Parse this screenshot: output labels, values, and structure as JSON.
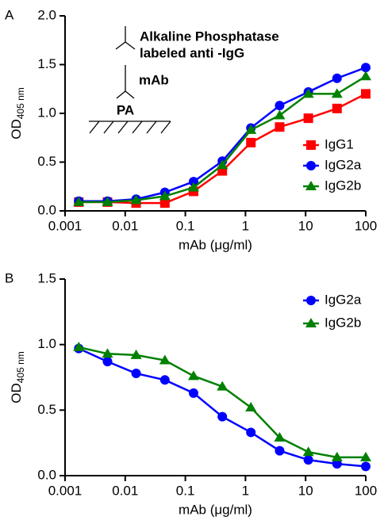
{
  "chart_data": [
    {
      "type": "line",
      "panel": "A",
      "y_label": "OD",
      "y_label_sub": "405 nm",
      "x_label": "mAb (μg/ml)",
      "x_scale": "log",
      "x": [
        0.00169,
        0.00508,
        0.0152,
        0.0457,
        0.137,
        0.412,
        1.23,
        3.7,
        11.1,
        33.3,
        100
      ],
      "xlim": [
        0.001,
        100
      ],
      "xticks": [
        0.001,
        0.01,
        0.1,
        1,
        10,
        100
      ],
      "ylim": [
        0,
        2
      ],
      "yticks": [
        {
          "value": 0,
          "label": "0.0"
        },
        0.5,
        {
          "value": 1,
          "label": "1.0"
        },
        1.5,
        {
          "value": 2,
          "label": "2.0"
        }
      ],
      "annotations": [
        "Alkaline Phosphatase",
        "labeled anti -IgG",
        "mAb",
        "PA"
      ],
      "series": [
        {
          "name": "IgG1",
          "color": "#ff0000",
          "marker": "square",
          "values": [
            0.09,
            0.09,
            0.08,
            0.08,
            0.2,
            0.41,
            0.7,
            0.86,
            0.95,
            1.05,
            1.2
          ]
        },
        {
          "name": "IgG2a",
          "color": "#0000ff",
          "marker": "circle",
          "values": [
            0.1,
            0.1,
            0.12,
            0.19,
            0.3,
            0.51,
            0.85,
            1.08,
            1.22,
            1.36,
            1.47
          ]
        },
        {
          "name": "IgG2b",
          "color": "#008000",
          "marker": "triangle",
          "values": [
            0.09,
            0.09,
            0.11,
            0.15,
            0.24,
            0.47,
            0.83,
            0.98,
            1.2,
            1.2,
            1.38
          ]
        }
      ]
    },
    {
      "type": "line",
      "panel": "B",
      "y_label": "OD",
      "y_label_sub": "405 nm",
      "x_label": "mAb (μg/ml)",
      "x_scale": "log",
      "x": [
        0.00169,
        0.00508,
        0.0152,
        0.0457,
        0.137,
        0.412,
        1.23,
        3.7,
        11.1,
        33.3,
        100
      ],
      "xlim": [
        0.001,
        100
      ],
      "xticks": [
        0.001,
        0.01,
        0.1,
        1,
        10,
        100
      ],
      "ylim": [
        0,
        1.5
      ],
      "yticks": [
        {
          "value": 0,
          "label": "0.0"
        },
        0.5,
        {
          "value": 1,
          "label": "1.0"
        },
        1.5
      ],
      "series": [
        {
          "name": "IgG2a",
          "color": "#0000ff",
          "marker": "circle",
          "values": [
            0.97,
            0.87,
            0.78,
            0.73,
            0.63,
            0.45,
            0.33,
            0.19,
            0.12,
            0.09,
            0.07
          ]
        },
        {
          "name": "IgG2b",
          "color": "#008000",
          "marker": "triangle",
          "values": [
            0.98,
            0.93,
            0.92,
            0.88,
            0.76,
            0.68,
            0.52,
            0.29,
            0.18,
            0.14,
            0.14
          ]
        }
      ]
    }
  ]
}
